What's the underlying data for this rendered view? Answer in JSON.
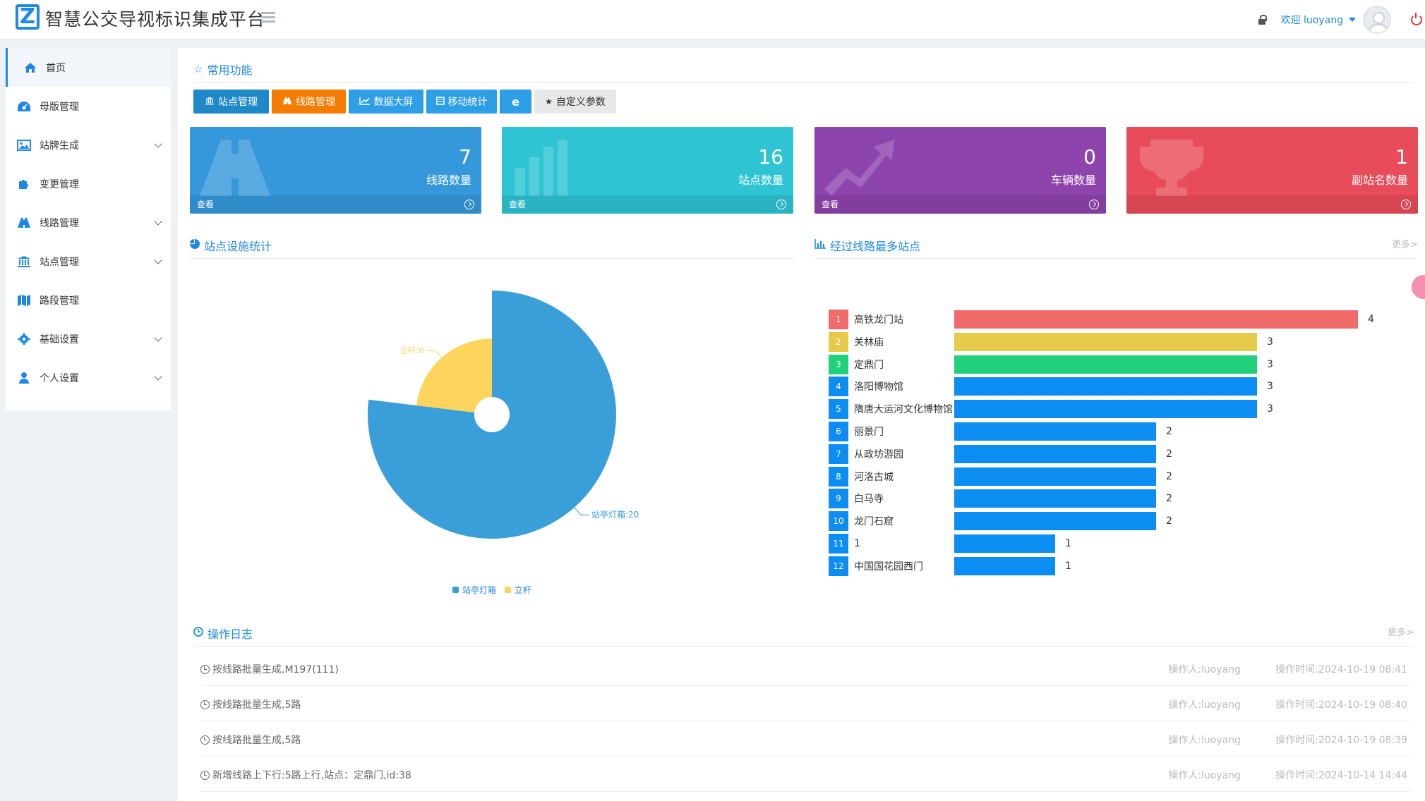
{
  "header": {
    "title": "智慧公交导视标识集成平台",
    "welcome": "欢迎 luoyang"
  },
  "sidebar": {
    "items": [
      {
        "label": "首页",
        "icon": "home-icon"
      },
      {
        "label": "母版管理",
        "icon": "dashboard-icon"
      },
      {
        "label": "站牌生成",
        "icon": "image-icon"
      },
      {
        "label": "变更管理",
        "icon": "puzzle-icon"
      },
      {
        "label": "线路管理",
        "icon": "road-icon"
      },
      {
        "label": "站点管理",
        "icon": "bank-icon"
      },
      {
        "label": "路段管理",
        "icon": "map-icon"
      },
      {
        "label": "基础设置",
        "icon": "gear-icon"
      },
      {
        "label": "个人设置",
        "icon": "user-icon"
      }
    ]
  },
  "quick": {
    "title": "常用功能",
    "buttons": [
      {
        "label": "站点管理",
        "color": "#1e88c8",
        "icon": "bank-icon"
      },
      {
        "label": "线路管理",
        "color": "#f57c00",
        "icon": "road-icon"
      },
      {
        "label": "数据大屏",
        "color": "#2e9fe6",
        "icon": "line-chart-icon"
      },
      {
        "label": "移动统计",
        "color": "#2e9fe6",
        "icon": "mobile-icon"
      },
      {
        "label": "",
        "color": "#2e9fe6",
        "icon": "ie-icon"
      },
      {
        "label": "自定义参数",
        "color": "#e8e8e8",
        "icon": "star-icon"
      }
    ]
  },
  "cards": [
    {
      "value": "7",
      "label": "线路数量",
      "footer": "查看",
      "color": "#3498db"
    },
    {
      "value": "16",
      "label": "站点数量",
      "footer": "查看",
      "color": "#2ec4d4"
    },
    {
      "value": "0",
      "label": "车辆数量",
      "footer": "查看",
      "color": "#8e44ad"
    },
    {
      "value": "1",
      "label": "副站名数量",
      "footer": "",
      "color": "#e84c5a"
    }
  ],
  "pie_section": {
    "title": "站点设施统计"
  },
  "bar_section": {
    "title": "经过线路最多站点",
    "more": "更多>"
  },
  "log_section": {
    "title": "操作日志",
    "more": "更多>",
    "rows": [
      {
        "text": "按线路批量生成,M197(111)",
        "operator": "操作人:luoyang",
        "time": "操作时间:2024-10-19 08:41"
      },
      {
        "text": "按线路批量生成,5路",
        "operator": "操作人:luoyang",
        "time": "操作时间:2024-10-19 08:40"
      },
      {
        "text": "按线路批量生成,5路",
        "operator": "操作人:luoyang",
        "time": "操作时间:2024-10-19 08:39"
      },
      {
        "text": "新增线路上下行:5路上行,站点：定鼎门,id:38",
        "operator": "操作人:luoyang",
        "time": "操作时间:2024-10-14 14:44"
      }
    ]
  },
  "chart_data": [
    {
      "type": "pie",
      "title": "",
      "categories": [
        "站亭灯箱",
        "立杆"
      ],
      "values": [
        20,
        6
      ],
      "slice_labels": [
        "站亭灯箱:20",
        "立杆:6"
      ],
      "colors": [
        "#3a9fd8",
        "#fdd55d"
      ],
      "legend": [
        "站亭灯箱",
        "立杆"
      ],
      "legend_position": "bottom",
      "rose": true
    },
    {
      "type": "bar",
      "orientation": "horizontal",
      "title": "",
      "categories": [
        "高铁龙门站",
        "关林庙",
        "定鼎门",
        "洛阳博物馆",
        "隋唐大运河文化博物馆",
        "丽景门",
        "从政坊游园",
        "河洛古城",
        "白马寺",
        "龙门石窟",
        "1",
        "中国国花园西门"
      ],
      "values": [
        4,
        3,
        3,
        3,
        3,
        2,
        2,
        2,
        2,
        2,
        1,
        1
      ],
      "ranks": [
        "1",
        "2",
        "3",
        "4",
        "5",
        "6",
        "7",
        "8",
        "9",
        "10",
        "11",
        "12"
      ],
      "colors": [
        "#f26b6b",
        "#e6cb4a",
        "#21d07a",
        "#0b8df2",
        "#0b8df2",
        "#0b8df2",
        "#0b8df2",
        "#0b8df2",
        "#0b8df2",
        "#0b8df2",
        "#0b8df2",
        "#0b8df2"
      ]
    }
  ]
}
